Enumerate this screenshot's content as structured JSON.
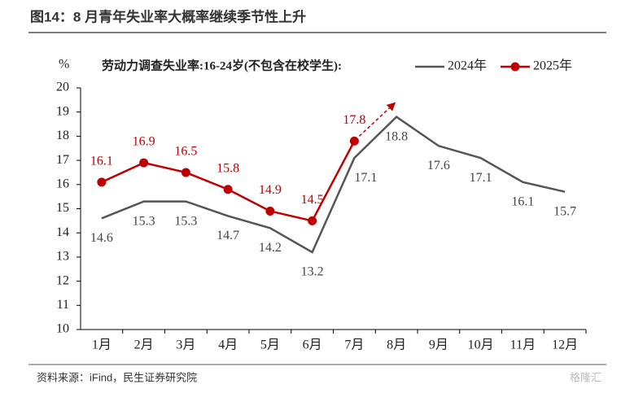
{
  "figure_title": "图14：8 月青年失业率大概率继续季节性上升",
  "source": "资料来源：iFind，民生证券研究院",
  "watermark": "格隆汇",
  "chart_data": {
    "type": "line",
    "title": "劳动力调查失业率:16-24岁(不包含在校学生):",
    "y_label": "%",
    "categories": [
      "1月",
      "2月",
      "3月",
      "4月",
      "5月",
      "6月",
      "7月",
      "8月",
      "9月",
      "10月",
      "11月",
      "12月"
    ],
    "series": [
      {
        "name": "2024年",
        "color": "#555555",
        "values": [
          14.6,
          15.3,
          15.3,
          14.7,
          14.2,
          13.2,
          17.1,
          18.8,
          17.6,
          17.1,
          16.1,
          15.7
        ]
      },
      {
        "name": "2025年",
        "color": "#c00000",
        "values": [
          16.1,
          16.9,
          16.5,
          15.8,
          14.9,
          14.5,
          17.8,
          null,
          null,
          null,
          null,
          null
        ]
      }
    ],
    "ylim": [
      10,
      20
    ],
    "yticks": [
      10,
      11,
      12,
      13,
      14,
      15,
      16,
      17,
      18,
      19,
      20
    ],
    "grid": false
  }
}
